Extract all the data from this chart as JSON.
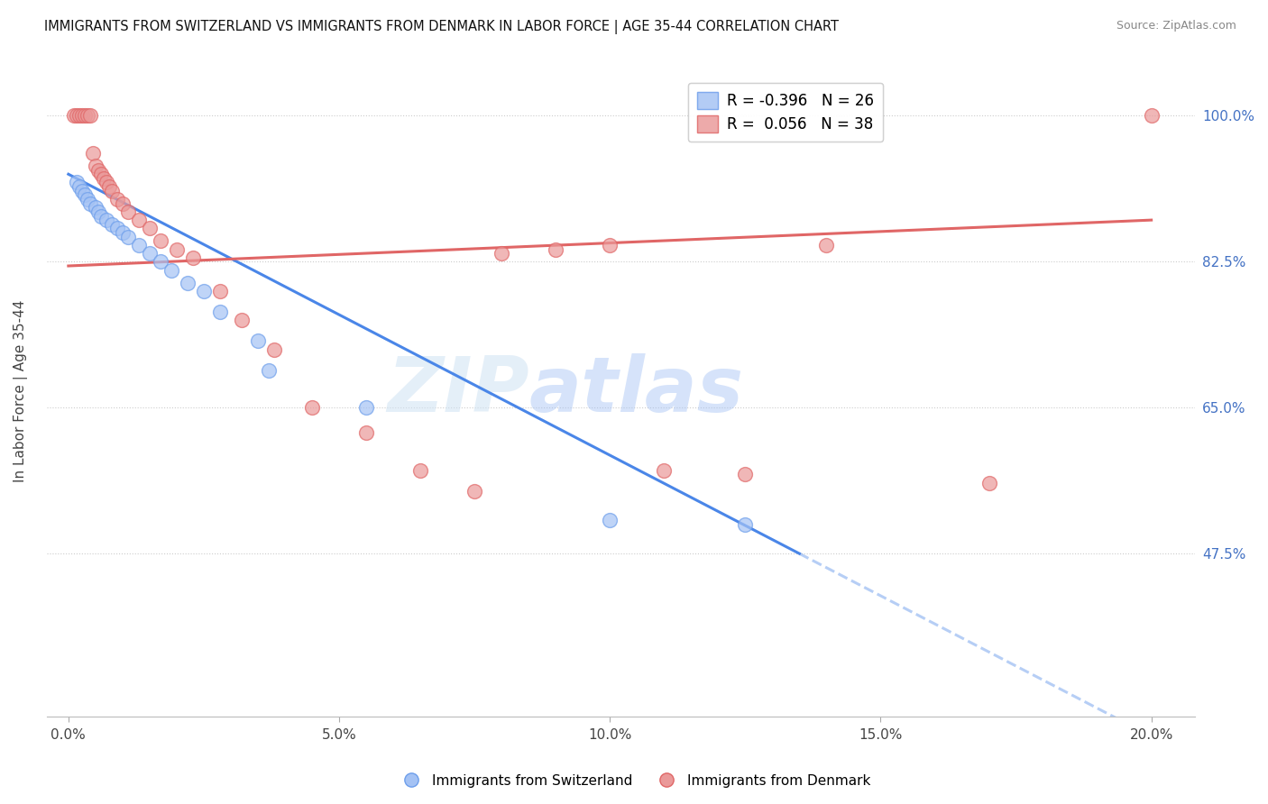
{
  "title": "IMMIGRANTS FROM SWITZERLAND VS IMMIGRANTS FROM DENMARK IN LABOR FORCE | AGE 35-44 CORRELATION CHART",
  "source": "Source: ZipAtlas.com",
  "xlabel_ticks": [
    "0.0%",
    "5.0%",
    "10.0%",
    "15.0%",
    "20.0%"
  ],
  "xlabel_vals": [
    0.0,
    5.0,
    10.0,
    15.0,
    20.0
  ],
  "ylabel_ticks": [
    "100.0%",
    "82.5%",
    "65.0%",
    "47.5%"
  ],
  "ylabel_vals": [
    100.0,
    82.5,
    65.0,
    47.5
  ],
  "ylabel_label": "In Labor Force | Age 35-44",
  "xlim": [
    -0.4,
    20.8
  ],
  "ylim": [
    28.0,
    106.0
  ],
  "legend_blue_r": "-0.396",
  "legend_blue_n": "26",
  "legend_pink_r": "0.056",
  "legend_pink_n": "38",
  "blue_color": "#a4c2f4",
  "pink_color": "#ea9999",
  "blue_edge_color": "#6d9eeb",
  "pink_edge_color": "#e06666",
  "blue_line_color": "#4a86e8",
  "pink_line_color": "#e06666",
  "watermark_zip": "ZIP",
  "watermark_atlas": "atlas",
  "blue_trend_x0": 0.0,
  "blue_trend_y0": 93.0,
  "blue_trend_x1": 13.5,
  "blue_trend_y1": 47.5,
  "blue_solid_end": 13.5,
  "blue_dash_end": 21.0,
  "pink_trend_x0": 0.0,
  "pink_trend_y0": 82.0,
  "pink_trend_x1": 20.0,
  "pink_trend_y1": 87.5,
  "pink_solid_end": 20.0,
  "swiss_points_x": [
    0.15,
    0.2,
    0.25,
    0.3,
    0.35,
    0.4,
    0.5,
    0.55,
    0.6,
    0.7,
    0.8,
    0.9,
    1.0,
    1.1,
    1.3,
    1.5,
    1.7,
    1.9,
    2.2,
    2.5,
    2.8,
    3.5,
    3.7,
    5.5,
    10.0,
    12.5
  ],
  "swiss_points_y": [
    92.0,
    91.5,
    91.0,
    90.5,
    90.0,
    89.5,
    89.0,
    88.5,
    88.0,
    87.5,
    87.0,
    86.5,
    86.0,
    85.5,
    84.5,
    83.5,
    82.5,
    81.5,
    80.0,
    79.0,
    76.5,
    73.0,
    69.5,
    65.0,
    51.5,
    51.0
  ],
  "denmark_points_x": [
    0.1,
    0.15,
    0.2,
    0.25,
    0.3,
    0.35,
    0.4,
    0.45,
    0.5,
    0.55,
    0.6,
    0.65,
    0.7,
    0.75,
    0.8,
    0.9,
    1.0,
    1.1,
    1.3,
    1.5,
    1.7,
    2.0,
    2.3,
    2.8,
    3.2,
    3.8,
    4.5,
    5.5,
    6.5,
    7.5,
    8.0,
    9.0,
    10.0,
    11.0,
    12.5,
    14.0,
    17.0,
    20.0
  ],
  "denmark_points_y": [
    100.0,
    100.0,
    100.0,
    100.0,
    100.0,
    100.0,
    100.0,
    95.5,
    94.0,
    93.5,
    93.0,
    92.5,
    92.0,
    91.5,
    91.0,
    90.0,
    89.5,
    88.5,
    87.5,
    86.5,
    85.0,
    84.0,
    83.0,
    79.0,
    75.5,
    72.0,
    65.0,
    62.0,
    57.5,
    55.0,
    83.5,
    84.0,
    84.5,
    57.5,
    57.0,
    84.5,
    56.0,
    100.0
  ]
}
